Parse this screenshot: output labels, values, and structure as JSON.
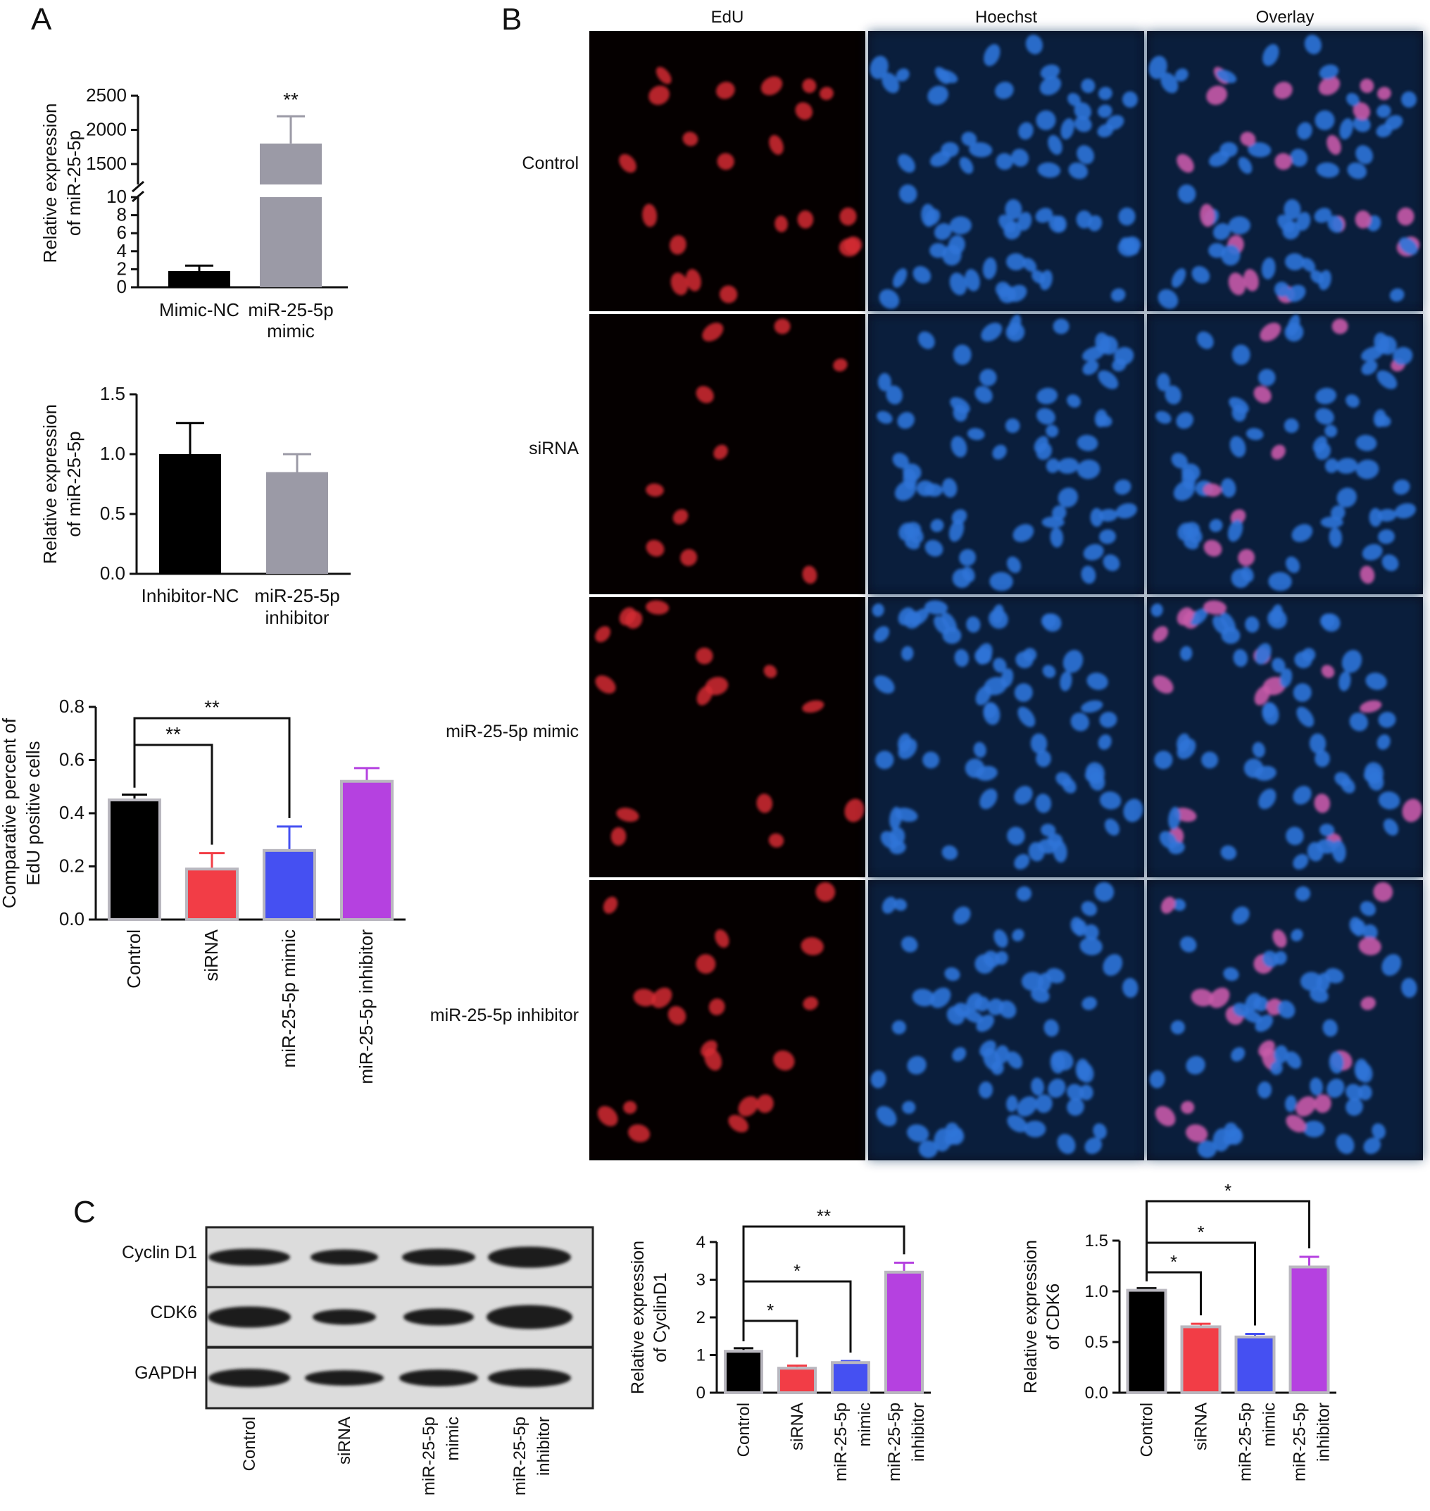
{
  "panels": {
    "A": "A",
    "B": "B",
    "C": "C"
  },
  "colors": {
    "black": "#000000",
    "gray": "#9b9aa6",
    "red": "#f23d46",
    "blue": "#4550f2",
    "purple": "#b541e0",
    "edu_red": "#d42a32",
    "hoechst_blue": "#2f74d8",
    "overlay_pink": "#c65aa8"
  },
  "microscopy": {
    "columns": [
      "EdU",
      "Hoechst",
      "Overlay"
    ],
    "rows": [
      "Control",
      "siRNA",
      "miR-25-5p mimic",
      "miR-25-5p inhibitor"
    ]
  },
  "western": {
    "bands": [
      "Cyclin D1",
      "CDK6",
      "GAPDH"
    ],
    "lanes": [
      {
        "line1": "Control",
        "line2": ""
      },
      {
        "line1": "siRNA",
        "line2": ""
      },
      {
        "line1": "miR-25-5p",
        "line2": "mimic"
      },
      {
        "line1": "miR-25-5p",
        "line2": "inhibitor"
      }
    ]
  },
  "chart_data": [
    {
      "id": "A1",
      "type": "bar",
      "categories": [
        {
          "line1": "Mimic-NC",
          "line2": ""
        },
        {
          "line1": "miR-25-5p",
          "line2": "mimic"
        }
      ],
      "values": [
        1.8,
        1800
      ],
      "errors": [
        0.6,
        400
      ],
      "colors": [
        "#000000",
        "#9b9aa6"
      ],
      "ylabel": [
        "Relative expression",
        "of miR-25-5p"
      ],
      "axis_break": {
        "lower": [
          0,
          10
        ],
        "upper": [
          1200,
          2500
        ]
      },
      "yticks_lower": [
        "0",
        "2",
        "4",
        "6",
        "8",
        "10"
      ],
      "yticks_upper": [
        "1500",
        "2000",
        "2500"
      ],
      "annotations": [
        {
          "bar": 1,
          "text": "**"
        }
      ]
    },
    {
      "id": "A2",
      "type": "bar",
      "categories": [
        {
          "line1": "Inhibitor-NC",
          "line2": ""
        },
        {
          "line1": "miR-25-5p",
          "line2": "inhibitor"
        }
      ],
      "values": [
        1.0,
        0.85
      ],
      "errors": [
        0.26,
        0.15
      ],
      "colors": [
        "#000000",
        "#9b9aa6"
      ],
      "ylabel": [
        "Relative expression",
        "of miR-25-5p"
      ],
      "ylim": [
        0,
        1.5
      ],
      "yticks": [
        "0.0",
        "0.5",
        "1.0",
        "1.5"
      ]
    },
    {
      "id": "A3",
      "type": "bar",
      "categories": [
        "Control",
        "siRNA",
        "miR-25-5p mimic",
        "miR-25-5p inhibitor"
      ],
      "values": [
        0.45,
        0.19,
        0.26,
        0.52
      ],
      "errors": [
        0.02,
        0.06,
        0.09,
        0.05
      ],
      "colors": [
        "#000000",
        "#f23d46",
        "#4550f2",
        "#b541e0"
      ],
      "ylabel": [
        "Comparative percent of",
        "EdU positive cells"
      ],
      "ylim": [
        0,
        0.8
      ],
      "yticks": [
        "0.0",
        "0.2",
        "0.4",
        "0.6",
        "0.8"
      ],
      "brackets": [
        {
          "from": 0,
          "to": 1,
          "label": "**"
        },
        {
          "from": 0,
          "to": 2,
          "label": "**"
        }
      ]
    },
    {
      "id": "C1",
      "type": "bar",
      "categories": [
        {
          "line1": "Control",
          "line2": ""
        },
        {
          "line1": "siRNA",
          "line2": ""
        },
        {
          "line1": "miR-25-5p",
          "line2": "mimic"
        },
        {
          "line1": "miR-25-5p",
          "line2": "inhibitor"
        }
      ],
      "values": [
        1.1,
        0.65,
        0.8,
        3.2
      ],
      "errors": [
        0.08,
        0.07,
        0.04,
        0.25
      ],
      "colors": [
        "#000000",
        "#f23d46",
        "#4550f2",
        "#b541e0"
      ],
      "ylabel": [
        "Relative expression",
        "of CyclinD1"
      ],
      "ylim": [
        0,
        4
      ],
      "yticks": [
        "0",
        "1",
        "2",
        "3",
        "4"
      ],
      "brackets": [
        {
          "from": 0,
          "to": 1,
          "label": "*"
        },
        {
          "from": 0,
          "to": 2,
          "label": "*"
        },
        {
          "from": 0,
          "to": 3,
          "label": "**"
        }
      ]
    },
    {
      "id": "C2",
      "type": "bar",
      "categories": [
        {
          "line1": "Control",
          "line2": ""
        },
        {
          "line1": "siRNA",
          "line2": ""
        },
        {
          "line1": "miR-25-5p",
          "line2": "mimic"
        },
        {
          "line1": "miR-25-5p",
          "line2": "inhibitor"
        }
      ],
      "values": [
        1.01,
        0.65,
        0.55,
        1.24
      ],
      "errors": [
        0.02,
        0.03,
        0.03,
        0.1
      ],
      "colors": [
        "#000000",
        "#f23d46",
        "#4550f2",
        "#b541e0"
      ],
      "ylabel": [
        "Relative expression",
        "of CDK6"
      ],
      "ylim": [
        0,
        1.5
      ],
      "yticks": [
        "0.0",
        "0.5",
        "1.0",
        "1.5"
      ],
      "brackets": [
        {
          "from": 0,
          "to": 1,
          "label": "*"
        },
        {
          "from": 0,
          "to": 2,
          "label": "*"
        },
        {
          "from": 0,
          "to": 3,
          "label": "*"
        }
      ]
    }
  ]
}
